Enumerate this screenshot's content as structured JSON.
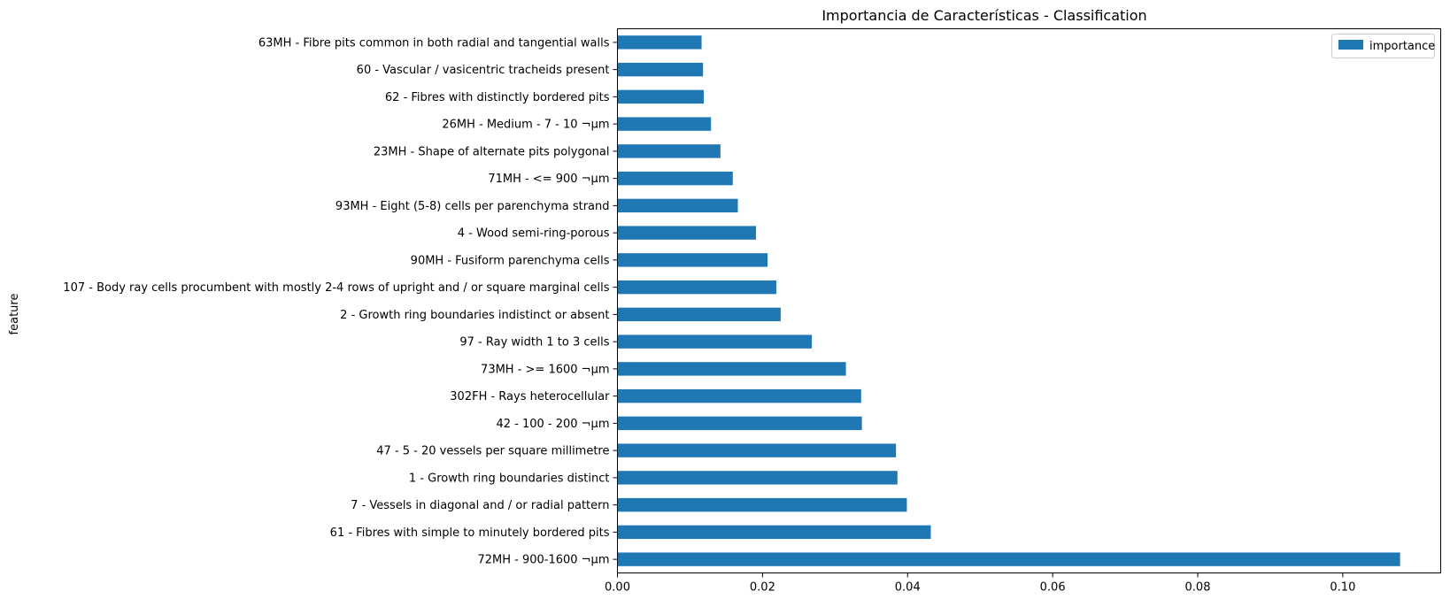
{
  "chart_data": {
    "type": "bar",
    "orientation": "horizontal",
    "title": "Importancia de Características - Classification",
    "xlabel": "",
    "ylabel": "feature",
    "xlim": [
      0.0,
      0.1135
    ],
    "xticks": [
      "0.00",
      "0.02",
      "0.04",
      "0.06",
      "0.08",
      "0.10"
    ],
    "grid": false,
    "legend_position": "top-right",
    "categories": [
      "72MH - 900-1600 ¬µm",
      "61 - Fibres with simple to minutely bordered pits",
      "7 - Vessels in diagonal and / or radial pattern",
      "1 - Growth ring boundaries distinct",
      "47 - 5 - 20 vessels per square millimetre",
      "42 - 100 - 200 ¬µm",
      "302FH - Rays heterocellular",
      "73MH - >= 1600 ¬µm",
      "97 - Ray width 1 to 3 cells",
      "2 - Growth ring boundaries indistinct or absent",
      "107 - Body ray cells procumbent with mostly 2-4 rows of upright and / or square marginal cells",
      "90MH - Fusiform parenchyma cells",
      "4 - Wood semi-ring-porous",
      "93MH - Eight (5-8) cells per parenchyma strand",
      "71MH - <= 900 ¬µm",
      "23MH - Shape of alternate pits polygonal",
      "26MH - Medium - 7 - 10 ¬µm",
      "62 - Fibres with distinctly bordered pits",
      "60 - Vascular / vasicentric tracheids present",
      "63MH - Fibre pits common in both radial and tangential walls"
    ],
    "series": [
      {
        "name": "importance",
        "color": "#1f77b4",
        "values": [
          0.1079,
          0.0432,
          0.0399,
          0.0386,
          0.0384,
          0.0337,
          0.0336,
          0.0315,
          0.0268,
          0.0225,
          0.0219,
          0.0207,
          0.0191,
          0.0166,
          0.0159,
          0.0142,
          0.0129,
          0.0119,
          0.0118,
          0.0116
        ]
      }
    ]
  }
}
